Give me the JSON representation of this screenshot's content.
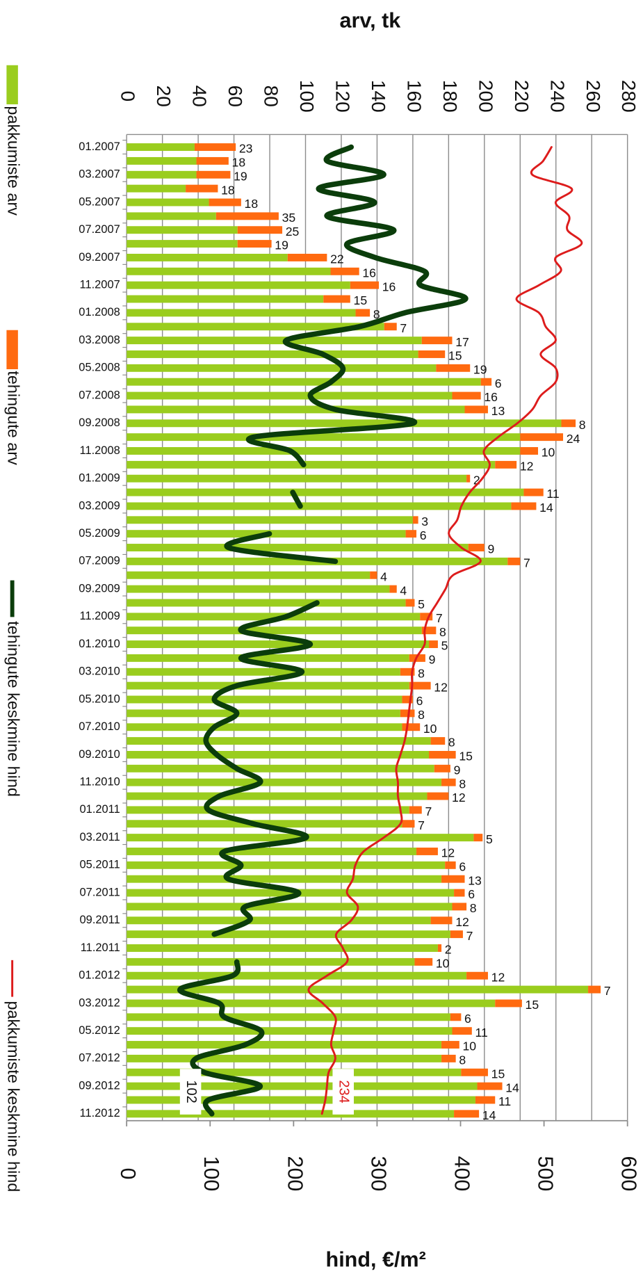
{
  "chart_data": {
    "type": "bar",
    "orientation": "horizontal",
    "stacked": true,
    "xlabel": "arv, tk",
    "x2label": "hind, €/m²",
    "categories": [
      "01.2007",
      null,
      "03.2007",
      null,
      "05.2007",
      null,
      "07.2007",
      null,
      "09.2007",
      null,
      "11.2007",
      null,
      "01.2008",
      null,
      "03.2008",
      null,
      "05.2008",
      null,
      "07.2008",
      null,
      "09.2008",
      null,
      "11.2008",
      null,
      "01.2009",
      null,
      "03.2009",
      null,
      "05.2009",
      null,
      "07.2009",
      null,
      "09.2009",
      null,
      "11.2009",
      null,
      "01.2010",
      null,
      "03.2010",
      null,
      "05.2010",
      null,
      "07.2010",
      null,
      "09.2010",
      null,
      "11.2010",
      null,
      "01.2011",
      null,
      "03.2011",
      null,
      "05.2011",
      null,
      "07.2011",
      null,
      "09.2011",
      null,
      "11.2011",
      null,
      "01.2012",
      null,
      "03.2012",
      null,
      "05.2012",
      null,
      "07.2012",
      null,
      "09.2012",
      null,
      "11.2012"
    ],
    "xlim": [
      0,
      280
    ],
    "xticks": [
      0,
      20,
      40,
      60,
      80,
      100,
      120,
      140,
      160,
      180,
      200,
      220,
      240,
      260,
      280
    ],
    "x2lim": [
      0,
      600
    ],
    "x2ticks": [
      0,
      100,
      200,
      300,
      400,
      500,
      600
    ],
    "grid": true,
    "legend": "left",
    "series": [
      {
        "name": "pakkumiste arv",
        "color": "#9acd1e",
        "values": [
          38,
          39,
          39,
          33,
          46,
          50,
          62,
          62,
          90,
          114,
          125,
          110,
          128,
          144,
          165,
          163,
          173,
          198,
          182,
          189,
          243,
          220,
          220,
          206,
          190,
          222,
          215,
          160,
          156,
          191,
          213,
          136,
          147,
          156,
          164,
          165,
          169,
          158,
          153,
          158,
          154,
          153,
          154,
          170,
          169,
          172,
          176,
          168,
          158,
          154,
          194,
          162,
          178,
          176,
          183,
          182,
          170,
          181,
          174,
          161,
          190,
          258,
          206,
          181,
          182,
          176,
          176,
          187,
          196,
          195,
          183
        ]
      },
      {
        "name": "tehingute arv",
        "color": "#ff6a10",
        "labels": true,
        "values": [
          23,
          18,
          19,
          18,
          18,
          35,
          25,
          19,
          22,
          16,
          16,
          15,
          8,
          7,
          17,
          15,
          19,
          6,
          16,
          13,
          8,
          24,
          10,
          12,
          2,
          11,
          14,
          3,
          6,
          9,
          7,
          4,
          4,
          5,
          7,
          8,
          5,
          9,
          8,
          12,
          6,
          8,
          10,
          8,
          15,
          9,
          8,
          12,
          7,
          7,
          5,
          12,
          6,
          13,
          6,
          8,
          12,
          7,
          2,
          10,
          12,
          7,
          15,
          6,
          11,
          10,
          8,
          15,
          14,
          11,
          14
        ]
      },
      {
        "name": "tehingute keskmine hind",
        "type": "line",
        "axis": "x2",
        "color": "#0b3d0b",
        "values": [
          269,
          240,
          308,
          230,
          297,
          240,
          320,
          264,
          298,
          357,
          352,
          406,
          333,
          279,
          191,
          235,
          259,
          245,
          220,
          250,
          343,
          152,
          196,
          212,
          null,
          199,
          208,
          null,
          171,
          122,
          250,
          null,
          null,
          228,
          191,
          137,
          220,
          137,
          210,
          132,
          105,
          132,
          105,
          95,
          108,
          132,
          160,
          111,
          98,
          152,
          215,
          117,
          137,
          122,
          206,
          142,
          147,
          105,
          null,
          132,
          127,
          64,
          111,
          117,
          161,
          142,
          83,
          93,
          160,
          98,
          102
        ]
      },
      {
        "name": "pakkumiste keskmine hind",
        "type": "line",
        "axis": "x2",
        "color": "#dd1c1c",
        "values": [
          509,
          499,
          486,
          533,
          514,
          530,
          528,
          545,
          514,
          520,
          494,
          467,
          494,
          502,
          514,
          496,
          514,
          514,
          496,
          486,
          468,
          445,
          428,
          435,
          426,
          411,
          401,
          396,
          386,
          401,
          424,
          391,
          382,
          372,
          362,
          357,
          357,
          347,
          342,
          342,
          340,
          338,
          336,
          333,
          328,
          323,
          325,
          325,
          328,
          328,
          308,
          284,
          274,
          271,
          264,
          277,
          269,
          251,
          259,
          264,
          240,
          218,
          235,
          250,
          248,
          245,
          250,
          242,
          240,
          238,
          234
        ]
      }
    ]
  }
}
